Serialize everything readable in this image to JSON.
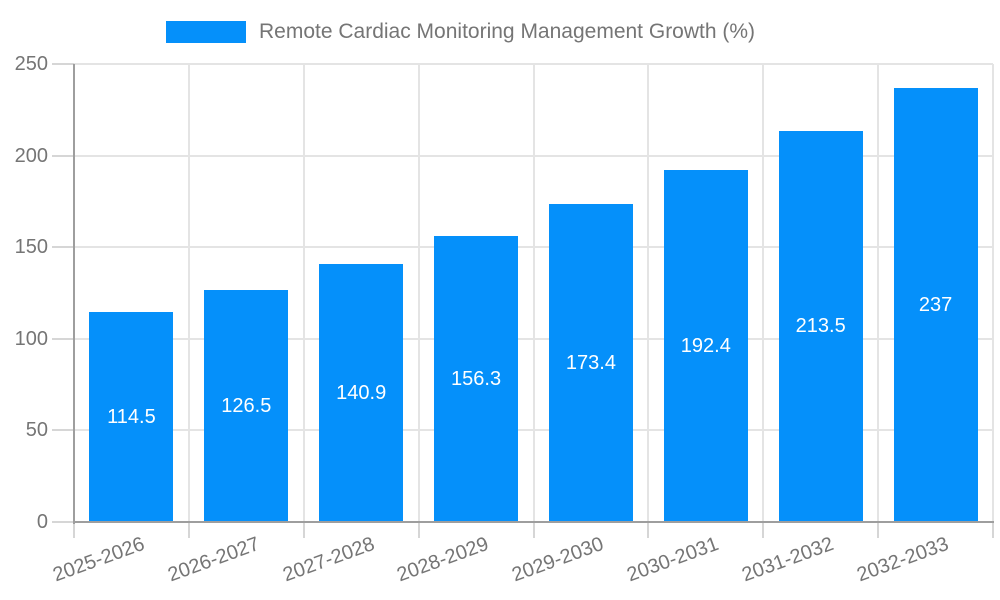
{
  "legend": {
    "label": "Remote Cardiac Monitoring Management Growth (%)"
  },
  "colors": {
    "bar": "#0590fa",
    "grid": "#e4e4e4",
    "tick": "#d6d6d6",
    "axis": "#9e9e9e",
    "text": "#757575",
    "bar_label": "#ffffff"
  },
  "chart_data": {
    "type": "bar",
    "title": "Remote Cardiac Monitoring Management Growth (%)",
    "categories": [
      "2025-2026",
      "2026-2027",
      "2027-2028",
      "2028-2029",
      "2029-2030",
      "2030-2031",
      "2031-2032",
      "2032-2033"
    ],
    "values": [
      114.5,
      126.5,
      140.9,
      156.3,
      173.4,
      192.4,
      213.5,
      237
    ],
    "series_name": "Remote Cardiac Monitoring Management Growth (%)",
    "xlabel": "",
    "ylabel": "",
    "ylim": [
      0,
      250
    ],
    "yticks": [
      0,
      50,
      100,
      150,
      200,
      250
    ],
    "grid": true,
    "legend_position": "top",
    "value_labels": "inside-center",
    "x_label_rotation_deg": -20
  }
}
